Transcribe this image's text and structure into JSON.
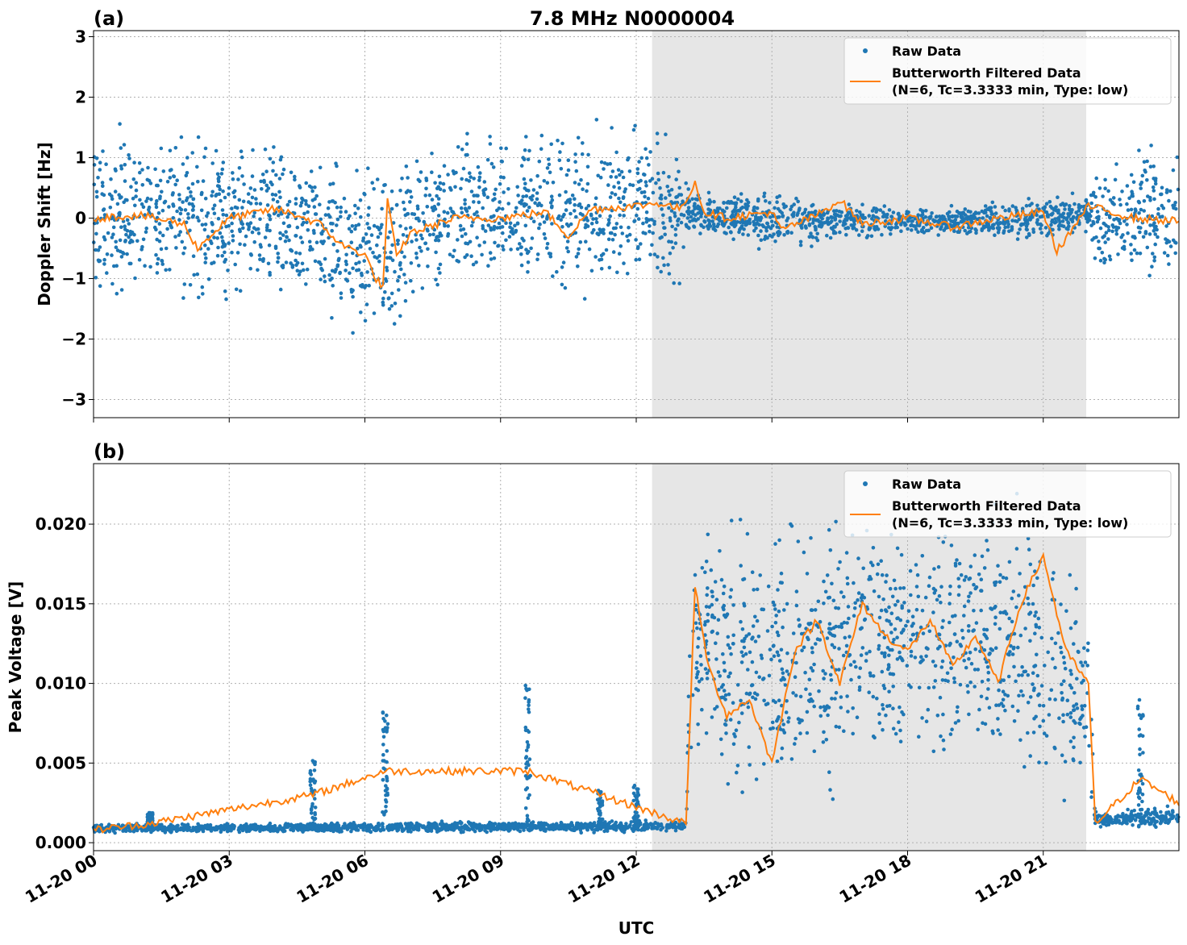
{
  "figure": {
    "title": "7.8 MHz N0000004",
    "xlabel": "UTC"
  },
  "legend": {
    "raw": "Raw Data",
    "filt_line1": "Butterworth Filtered Data",
    "filt_line2": "(N=6, Tc=3.3333 min, Type: low)",
    "placement": "top-right"
  },
  "colors": {
    "raw": "#1f77b4",
    "filtered": "#ff7f0e",
    "shade": "#e6e6e6",
    "grid": "#b0b0b0"
  },
  "chart_data": [
    {
      "panel_label": "(a)",
      "type": "scatter+line",
      "ylabel": "Doppler Shift [Hz]",
      "xlim": [
        0,
        24
      ],
      "ylim": [
        -3.3,
        3.1
      ],
      "yticks": [
        -3,
        -2,
        -1,
        0,
        1,
        2,
        3
      ],
      "ytick_labels": [
        "−3",
        "−2",
        "−1",
        "0",
        "1",
        "2",
        "3"
      ],
      "xticks": [
        0,
        3,
        6,
        9,
        12,
        15,
        18,
        21
      ],
      "grid": true,
      "shaded_region_hours": [
        12.35,
        21.95
      ],
      "series": [
        {
          "name": "Raw Data",
          "kind": "scatter",
          "band": [
            {
              "x": 0,
              "lo": -1.7,
              "hi": 1.9
            },
            {
              "x": 1,
              "lo": -1.8,
              "hi": 1.8
            },
            {
              "x": 2,
              "lo": -1.7,
              "hi": 1.7
            },
            {
              "x": 3,
              "lo": -1.6,
              "hi": 1.6
            },
            {
              "x": 4,
              "lo": -1.5,
              "hi": 1.5
            },
            {
              "x": 5,
              "lo": -1.8,
              "hi": 1.3
            },
            {
              "x": 6,
              "lo": -2.3,
              "hi": 1.2
            },
            {
              "x": 6.5,
              "lo": -2.6,
              "hi": 0.9
            },
            {
              "x": 7,
              "lo": -1.6,
              "hi": 1.4
            },
            {
              "x": 8,
              "lo": -1.4,
              "hi": 1.5
            },
            {
              "x": 9,
              "lo": -1.3,
              "hi": 1.6
            },
            {
              "x": 10,
              "lo": -1.5,
              "hi": 1.8
            },
            {
              "x": 11,
              "lo": -1.6,
              "hi": 1.8
            },
            {
              "x": 12,
              "lo": -1.4,
              "hi": 1.7
            },
            {
              "x": 13,
              "lo": -1.2,
              "hi": 1.4
            },
            {
              "x": 13.2,
              "lo": -0.3,
              "hi": 0.5
            },
            {
              "x": 15,
              "lo": -0.6,
              "hi": 0.5
            },
            {
              "x": 18,
              "lo": -0.3,
              "hi": 0.2
            },
            {
              "x": 21,
              "lo": -0.4,
              "hi": 0.4
            },
            {
              "x": 22,
              "lo": -0.3,
              "hi": 0.5
            },
            {
              "x": 22.2,
              "lo": -1.3,
              "hi": 1.2
            },
            {
              "x": 24,
              "lo": -1.3,
              "hi": 1.5
            }
          ]
        },
        {
          "name": "Butterworth Filtered Data",
          "kind": "line",
          "x": [
            0,
            1,
            2,
            2.3,
            3,
            4,
            4.5,
            5,
            5.5,
            6,
            6.2,
            6.4,
            6.5,
            6.7,
            7,
            8,
            9,
            10,
            10.5,
            11,
            12,
            12.5,
            13,
            13.3,
            13.5,
            14,
            15,
            15.2,
            16,
            16.5,
            17,
            18,
            19,
            20,
            21,
            21.3,
            22,
            23,
            24
          ],
          "y": [
            0.0,
            0.05,
            -0.1,
            -0.5,
            0.0,
            0.15,
            0.05,
            -0.1,
            -0.45,
            -0.6,
            -0.95,
            -1.15,
            0.3,
            -0.65,
            -0.25,
            0.0,
            0.0,
            0.1,
            -0.3,
            0.15,
            0.2,
            0.25,
            0.15,
            0.6,
            0.1,
            0.0,
            0.1,
            -0.2,
            0.05,
            0.3,
            -0.1,
            0.0,
            -0.15,
            0.0,
            0.1,
            -0.55,
            0.2,
            0.0,
            -0.05
          ]
        }
      ]
    },
    {
      "panel_label": "(b)",
      "type": "scatter+line",
      "ylabel": "Peak Voltage [V]",
      "xlim": [
        0,
        24
      ],
      "ylim": [
        -0.0005,
        0.0238
      ],
      "yticks": [
        0.0,
        0.005,
        0.01,
        0.015,
        0.02
      ],
      "ytick_labels": [
        "0.000",
        "0.005",
        "0.010",
        "0.015",
        "0.020"
      ],
      "xticks": [
        0,
        3,
        6,
        9,
        12,
        15,
        18,
        21
      ],
      "xtick_labels": [
        "11-20 00",
        "11-20 03",
        "11-20 06",
        "11-20 09",
        "11-20 12",
        "11-20 15",
        "11-20 18",
        "11-20 21"
      ],
      "grid": true,
      "shaded_region_hours": [
        12.35,
        21.95
      ],
      "series": [
        {
          "name": "Raw Data",
          "kind": "scatter",
          "spikes": [
            {
              "x": 1.25,
              "peak": 0.0019
            },
            {
              "x": 4.85,
              "peak": 0.0052
            },
            {
              "x": 6.45,
              "peak": 0.0084
            },
            {
              "x": 9.6,
              "peak": 0.0101
            },
            {
              "x": 11.2,
              "peak": 0.0034
            },
            {
              "x": 12.0,
              "peak": 0.0037
            },
            {
              "x": 23.15,
              "peak": 0.009
            }
          ],
          "band": [
            {
              "x": 0,
              "lo": 0.0006,
              "hi": 0.0012
            },
            {
              "x": 13.1,
              "lo": 0.0006,
              "hi": 0.0015
            },
            {
              "x": 13.2,
              "lo": 0.004,
              "hi": 0.021
            },
            {
              "x": 15,
              "lo": 0.001,
              "hi": 0.022
            },
            {
              "x": 18,
              "lo": 0.004,
              "hi": 0.022
            },
            {
              "x": 21,
              "lo": 0.002,
              "hi": 0.022
            },
            {
              "x": 22.0,
              "lo": 0.0015,
              "hi": 0.016
            },
            {
              "x": 22.15,
              "lo": 0.0008,
              "hi": 0.002
            },
            {
              "x": 24,
              "lo": 0.0008,
              "hi": 0.0025
            }
          ]
        },
        {
          "name": "Butterworth Filtered Data",
          "kind": "line",
          "x": [
            0,
            1.25,
            4.85,
            6.45,
            9.6,
            13.1,
            13.3,
            13.6,
            14,
            14.5,
            15,
            15.5,
            16,
            16.5,
            17,
            17.5,
            18,
            18.5,
            19,
            19.5,
            20,
            20.5,
            21,
            21.5,
            22.0,
            22.15,
            23.15,
            24
          ],
          "y": [
            0.0008,
            0.0012,
            0.003,
            0.0045,
            0.0045,
            0.0012,
            0.016,
            0.011,
            0.008,
            0.009,
            0.005,
            0.012,
            0.014,
            0.01,
            0.015,
            0.013,
            0.012,
            0.014,
            0.011,
            0.013,
            0.01,
            0.015,
            0.018,
            0.012,
            0.01,
            0.0012,
            0.004,
            0.0025
          ]
        }
      ]
    }
  ]
}
